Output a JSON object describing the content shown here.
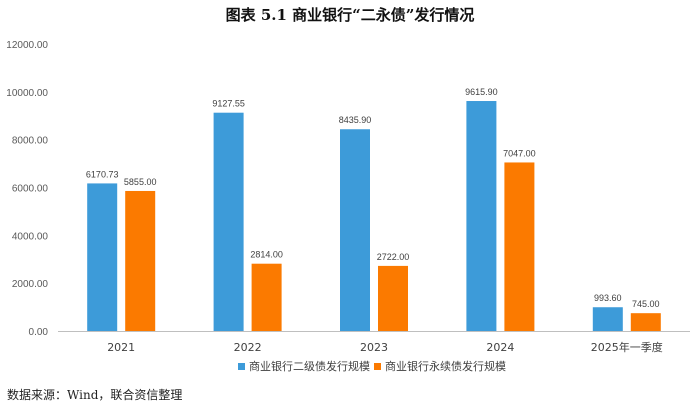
{
  "title": "图表 5.1    商业银行“二永债”发行情况",
  "source": "数据来源：Wind，联合资信整理",
  "chart_data": {
    "type": "bar",
    "categories": [
      "2021",
      "2022",
      "2023",
      "2024",
      "2025年一季度"
    ],
    "series": [
      {
        "name": "商业银行二级债发行规模",
        "color": "#3d9bd9",
        "values": [
          6170.73,
          9127.55,
          8435.9,
          9615.9,
          993.6
        ],
        "labels": [
          "6170.73",
          "9127.55",
          "8435.90",
          "9615.90",
          "993.60"
        ]
      },
      {
        "name": "商业银行永续债发行规模",
        "color": "#fb7a00",
        "values": [
          5855.0,
          2814.0,
          2722.0,
          7047.0,
          745.0
        ],
        "labels": [
          "5855.00",
          "2814.00",
          "2722.00",
          "7047.00",
          "745.00"
        ]
      }
    ],
    "ylim": [
      0,
      12000
    ],
    "yticks": [
      0,
      2000,
      4000,
      6000,
      8000,
      10000,
      12000
    ],
    "ytick_labels": [
      "0.00",
      "2000.00",
      "4000.00",
      "6000.00",
      "8000.00",
      "10000.00",
      "12000.00"
    ],
    "grid": false,
    "legend_position": "bottom"
  }
}
